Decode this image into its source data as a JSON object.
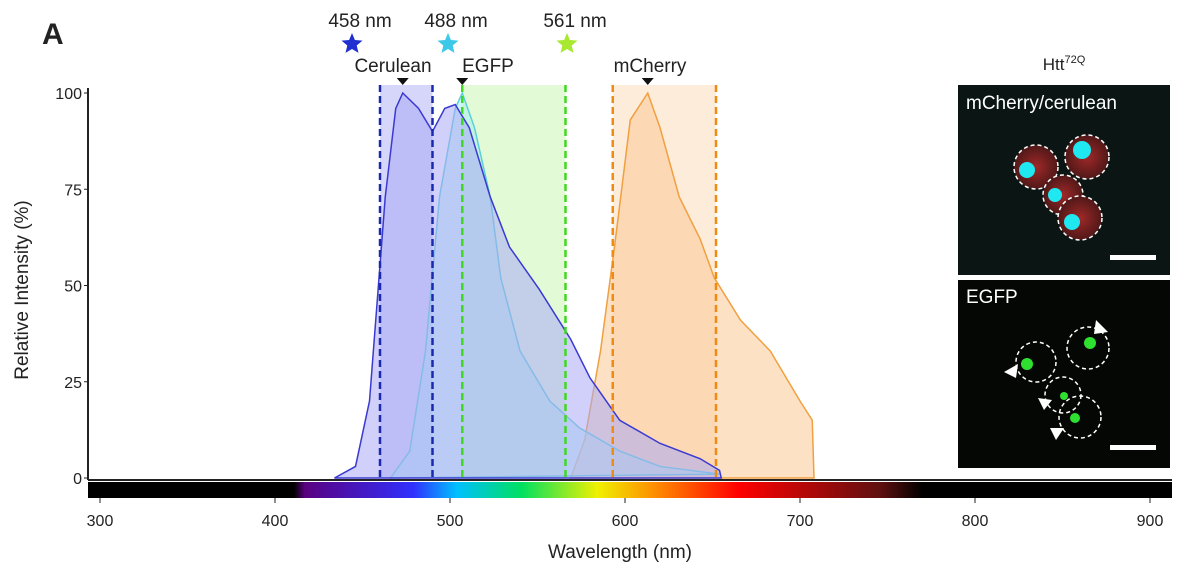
{
  "chart_data": {
    "type": "area",
    "panel_label": "A",
    "xlabel": "Wavelength (nm)",
    "ylabel": "Relative Intensity (%)",
    "xlim": [
      300,
      900
    ],
    "xticks": [
      300,
      400,
      500,
      600,
      700,
      800,
      900
    ],
    "ylim": [
      0,
      100
    ],
    "yticks": [
      0,
      25,
      50,
      75,
      100
    ],
    "lasers": [
      {
        "label": "458 nm",
        "color": "#1f2fd0"
      },
      {
        "label": "488 nm",
        "color": "#3cc8e8"
      },
      {
        "label": "561 nm",
        "color": "#a8e830"
      }
    ],
    "series": [
      {
        "name": "mCherry",
        "color": "#f0a040",
        "fill": "#f9c994",
        "band_color": "#fde6cf",
        "line_color": "#f08a10",
        "band": [
          593,
          652
        ],
        "x": [
          569,
          577,
          586,
          594,
          603,
          613,
          620,
          631,
          643,
          651,
          666,
          683,
          700,
          707,
          708
        ],
        "values": [
          0,
          10,
          33,
          60,
          93,
          100,
          91,
          73,
          62,
          52,
          41,
          33,
          20,
          15,
          0
        ]
      },
      {
        "name": "EGFP",
        "color": "#5bd0d8",
        "fill": "#a8ecec",
        "band_color": "#d9f8c9",
        "line_color": "#40d820",
        "band": [
          507,
          566
        ],
        "x": [
          466,
          477,
          486,
          494,
          503,
          507,
          514,
          523,
          529,
          540,
          557,
          574,
          597,
          620,
          654
        ],
        "values": [
          0,
          7,
          33,
          73,
          96,
          100,
          91,
          73,
          52,
          33,
          20,
          13,
          7,
          3,
          1
        ]
      },
      {
        "name": "Cerulean",
        "color": "#3a3ad0",
        "fill": "#a9a9f5",
        "band_color": "#c8c8f8",
        "line_color": "#1a2ab0",
        "band": [
          460,
          490
        ],
        "x": [
          434,
          446,
          454,
          463,
          469,
          473,
          482,
          490,
          497,
          503,
          511,
          523,
          534,
          551,
          569,
          580,
          597,
          620,
          643,
          654,
          655
        ],
        "values": [
          0,
          3,
          20,
          73,
          96,
          100,
          96,
          90,
          96,
          97,
          91,
          73,
          60,
          49,
          36,
          26,
          15,
          9,
          5,
          2,
          0
        ]
      }
    ],
    "images": {
      "title": "Htt",
      "title_sup": "72Q",
      "top_label": "mCherry/cerulean",
      "bottom_label": "EGFP"
    }
  }
}
